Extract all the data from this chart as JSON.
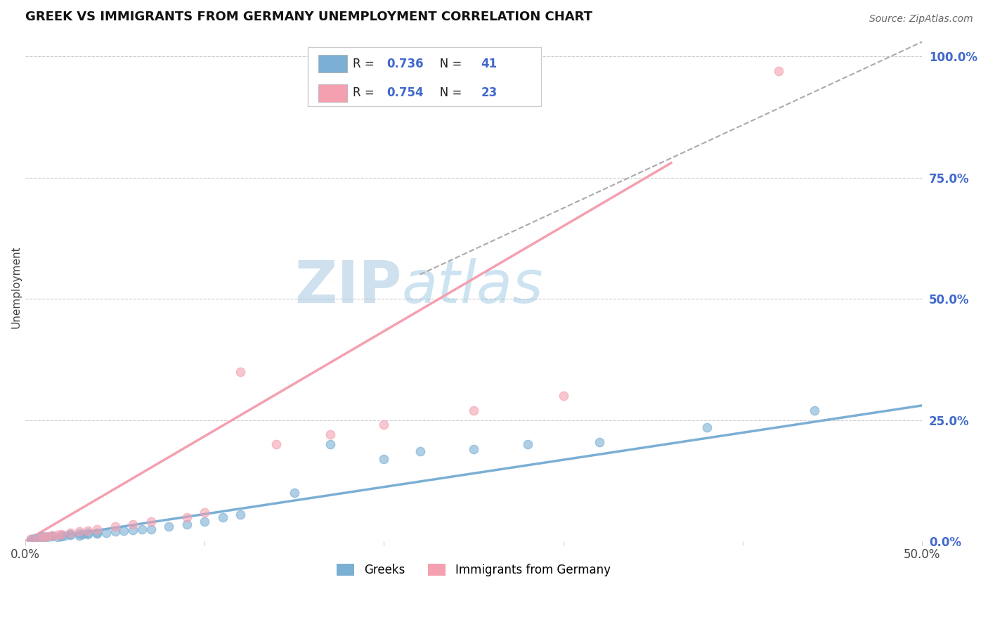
{
  "title": "GREEK VS IMMIGRANTS FROM GERMANY UNEMPLOYMENT CORRELATION CHART",
  "source_text": "Source: ZipAtlas.com",
  "ylabel": "Unemployment",
  "xlim": [
    0.0,
    0.5
  ],
  "ylim": [
    0.0,
    1.05
  ],
  "xticks": [
    0.0,
    0.1,
    0.2,
    0.3,
    0.4,
    0.5
  ],
  "xtick_labels": [
    "0.0%",
    "",
    "",
    "",
    "",
    "50.0%"
  ],
  "yticks_right": [
    0.0,
    0.25,
    0.5,
    0.75,
    1.0
  ],
  "ytick_labels_right": [
    "0.0%",
    "25.0%",
    "50.0%",
    "75.0%",
    "100.0%"
  ],
  "blue_color": "#7BAFD4",
  "pink_color": "#F4A0B0",
  "blue_R": "0.736",
  "blue_N": "41",
  "pink_R": "0.754",
  "pink_N": "23",
  "blue_label": "Greeks",
  "pink_label": "Immigrants from Germany",
  "title_fontsize": 13,
  "num_color": "#4169CC",
  "background_color": "#FFFFFF",
  "grid_color": "#CCCCCC",
  "blue_scatter_x": [
    0.003,
    0.005,
    0.007,
    0.01,
    0.01,
    0.012,
    0.015,
    0.015,
    0.018,
    0.02,
    0.02,
    0.022,
    0.025,
    0.025,
    0.03,
    0.03,
    0.032,
    0.035,
    0.035,
    0.04,
    0.04,
    0.045,
    0.05,
    0.055,
    0.06,
    0.065,
    0.07,
    0.08,
    0.09,
    0.1,
    0.11,
    0.12,
    0.15,
    0.17,
    0.2,
    0.22,
    0.25,
    0.28,
    0.32,
    0.38,
    0.44
  ],
  "blue_scatter_y": [
    0.005,
    0.006,
    0.007,
    0.007,
    0.01,
    0.008,
    0.01,
    0.012,
    0.009,
    0.01,
    0.012,
    0.011,
    0.013,
    0.015,
    0.012,
    0.016,
    0.014,
    0.015,
    0.017,
    0.016,
    0.018,
    0.017,
    0.02,
    0.022,
    0.023,
    0.025,
    0.025,
    0.03,
    0.035,
    0.04,
    0.05,
    0.055,
    0.1,
    0.2,
    0.17,
    0.185,
    0.19,
    0.2,
    0.205,
    0.235,
    0.27
  ],
  "pink_scatter_x": [
    0.003,
    0.007,
    0.01,
    0.012,
    0.015,
    0.018,
    0.02,
    0.025,
    0.03,
    0.035,
    0.04,
    0.05,
    0.06,
    0.07,
    0.09,
    0.1,
    0.12,
    0.14,
    0.17,
    0.2,
    0.25,
    0.3,
    0.42
  ],
  "pink_scatter_y": [
    0.005,
    0.007,
    0.008,
    0.01,
    0.012,
    0.013,
    0.015,
    0.018,
    0.02,
    0.022,
    0.025,
    0.03,
    0.035,
    0.04,
    0.05,
    0.06,
    0.35,
    0.2,
    0.22,
    0.24,
    0.27,
    0.3,
    0.97
  ],
  "blue_line_x": [
    0.0,
    0.5
  ],
  "blue_line_y": [
    0.0,
    0.28
  ],
  "pink_line_x": [
    0.0,
    0.36
  ],
  "pink_line_y": [
    0.0,
    0.78
  ],
  "dashed_line_x": [
    0.22,
    0.5
  ],
  "dashed_line_y": [
    0.55,
    1.03
  ]
}
